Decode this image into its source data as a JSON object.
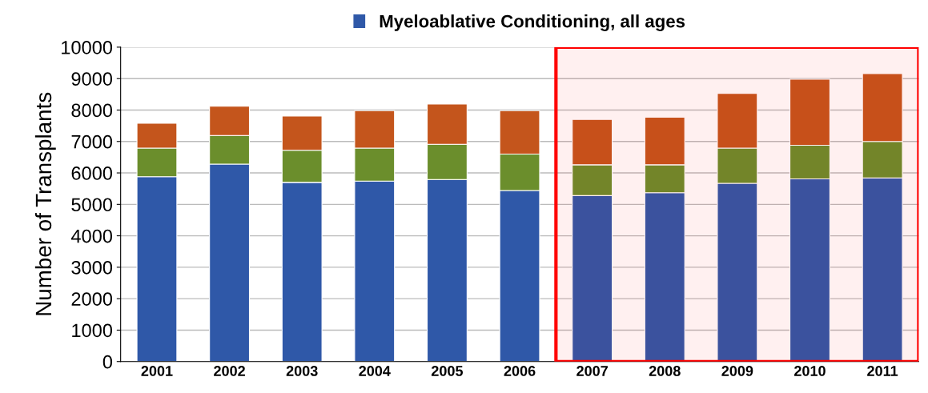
{
  "chart_data": {
    "type": "bar",
    "stacked": true,
    "ylabel": "Number of Transplants",
    "categories": [
      "2001",
      "2002",
      "2003",
      "2004",
      "2005",
      "2006",
      "2007",
      "2008",
      "2009",
      "2010",
      "2011"
    ],
    "series": [
      {
        "name": "Myeloablative Conditioning, all ages",
        "color": "#2f58a8",
        "values": [
          5880,
          6280,
          5700,
          5740,
          5790,
          5440,
          5280,
          5370,
          5670,
          5810,
          5840
        ]
      },
      {
        "color": "#6b8e2c",
        "values": [
          910,
          910,
          1020,
          1050,
          1120,
          1160,
          980,
          890,
          1120,
          1070,
          1160
        ]
      },
      {
        "color": "#c4551c",
        "values": [
          790,
          930,
          1090,
          1190,
          1280,
          1380,
          1440,
          1510,
          1740,
          2100,
          2160
        ]
      }
    ],
    "ylim": [
      0,
      10000
    ],
    "yticks": [
      0,
      1000,
      2000,
      3000,
      4000,
      5000,
      6000,
      7000,
      8000,
      9000,
      10000
    ],
    "grid": "y",
    "legend": "top",
    "bands": [
      {
        "axis": "x",
        "from": "2007",
        "to": "2011",
        "color": "#ff0000"
      }
    ]
  }
}
